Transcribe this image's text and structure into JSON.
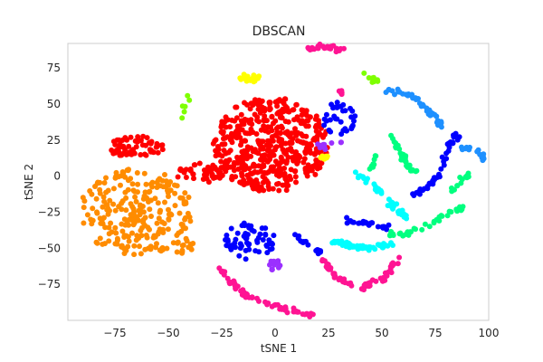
{
  "chart_data": {
    "type": "scatter",
    "title": "DBSCAN",
    "xlabel": "tSNE 1",
    "ylabel": "tSNE 2",
    "xlim": [
      -97,
      100
    ],
    "ylim": [
      -100,
      92
    ],
    "xticks": [
      -75,
      -50,
      -25,
      0,
      25,
      50,
      75,
      100
    ],
    "yticks": [
      -75,
      -50,
      -25,
      0,
      25,
      50,
      75
    ],
    "grid": false,
    "legend": "none",
    "marker_size": 3,
    "series": [
      {
        "color": "#ff0000",
        "kind": "blob",
        "center": [
          -2,
          22
        ],
        "radius": [
          27,
          33
        ],
        "n": 480
      },
      {
        "color": "#ff0000",
        "kind": "blob",
        "center": [
          -65,
          20
        ],
        "radius": [
          13,
          8
        ],
        "n": 60
      },
      {
        "color": "#ff0000",
        "kind": "blob",
        "center": [
          -35,
          2
        ],
        "radius": [
          12,
          7
        ],
        "n": 40
      },
      {
        "color": "#ff8c00",
        "kind": "blob",
        "center": [
          -65,
          -25
        ],
        "radius": [
          27,
          30
        ],
        "n": 250
      },
      {
        "color": "#ff8c00",
        "kind": "blob",
        "center": [
          -43,
          -48
        ],
        "radius": [
          5,
          6
        ],
        "n": 15
      },
      {
        "color": "#0000ff",
        "kind": "blob",
        "center": [
          -12,
          -45
        ],
        "radius": [
          12,
          13
        ],
        "n": 60
      },
      {
        "color": "#0000ff",
        "kind": "blob",
        "center": [
          30,
          40
        ],
        "radius": [
          8,
          12
        ],
        "n": 35
      },
      {
        "color": "#0000ff",
        "kind": "path",
        "pts": [
          [
            62,
            -15
          ],
          [
            72,
            -8
          ],
          [
            78,
            5
          ],
          [
            82,
            20
          ],
          [
            85,
            28
          ]
        ],
        "n": 45
      },
      {
        "color": "#0000ff",
        "kind": "path",
        "pts": [
          [
            32,
            -30
          ],
          [
            42,
            -33
          ],
          [
            52,
            -36
          ]
        ],
        "n": 25
      },
      {
        "color": "#0000ff",
        "kind": "path",
        "pts": [
          [
            8,
            -40
          ],
          [
            15,
            -48
          ],
          [
            22,
            -54
          ]
        ],
        "n": 15
      },
      {
        "color": "#1e90ff",
        "kind": "path",
        "pts": [
          [
            52,
            60
          ],
          [
            65,
            55
          ],
          [
            72,
            45
          ],
          [
            78,
            35
          ]
        ],
        "n": 45
      },
      {
        "color": "#1e90ff",
        "kind": "path",
        "pts": [
          [
            88,
            20
          ],
          [
            93,
            18
          ],
          [
            99,
            12
          ]
        ],
        "n": 20
      },
      {
        "color": "#00ffff",
        "kind": "path",
        "pts": [
          [
            26,
            -45
          ],
          [
            34,
            -48
          ],
          [
            44,
            -50
          ],
          [
            54,
            -47
          ]
        ],
        "n": 60
      },
      {
        "color": "#00ffff",
        "kind": "path",
        "pts": [
          [
            38,
            2
          ],
          [
            45,
            -5
          ],
          [
            55,
            -20
          ],
          [
            62,
            -28
          ]
        ],
        "n": 45
      },
      {
        "color": "#00ff7f",
        "kind": "path",
        "pts": [
          [
            52,
            -40
          ],
          [
            62,
            -40
          ],
          [
            72,
            -33
          ],
          [
            82,
            -25
          ],
          [
            90,
            -20
          ]
        ],
        "n": 40
      },
      {
        "color": "#00ff7f",
        "kind": "path",
        "pts": [
          [
            82,
            -10
          ],
          [
            88,
            -2
          ],
          [
            92,
            3
          ]
        ],
        "n": 15
      },
      {
        "color": "#00ff7f",
        "kind": "path",
        "pts": [
          [
            55,
            28
          ],
          [
            58,
            18
          ],
          [
            62,
            8
          ],
          [
            65,
            3
          ]
        ],
        "n": 30
      },
      {
        "color": "#00ff7f",
        "kind": "path",
        "pts": [
          [
            47,
            15
          ],
          [
            45,
            5
          ]
        ],
        "n": 8
      },
      {
        "color": "#ff1493",
        "kind": "path",
        "pts": [
          [
            -25,
            -65
          ],
          [
            -15,
            -82
          ],
          [
            0,
            -90
          ],
          [
            18,
            -97
          ]
        ],
        "n": 70
      },
      {
        "color": "#ff1493",
        "kind": "path",
        "pts": [
          [
            22,
            -58
          ],
          [
            28,
            -70
          ],
          [
            40,
            -78
          ],
          [
            50,
            -72
          ],
          [
            58,
            -58
          ]
        ],
        "n": 60
      },
      {
        "color": "#ff1493",
        "kind": "path",
        "pts": [
          [
            15,
            88
          ],
          [
            23,
            90
          ],
          [
            32,
            87
          ]
        ],
        "n": 30
      },
      {
        "color": "#ff1493",
        "kind": "blob",
        "center": [
          30,
          58
        ],
        "radius": [
          2,
          2
        ],
        "n": 5
      },
      {
        "color": "#ffff00",
        "kind": "blob",
        "center": [
          -12,
          68
        ],
        "radius": [
          5,
          3
        ],
        "n": 20
      },
      {
        "color": "#ffff00",
        "kind": "blob",
        "center": [
          23,
          13
        ],
        "radius": [
          3,
          1.5
        ],
        "n": 8
      },
      {
        "color": "#9b30ff",
        "kind": "blob",
        "center": [
          0,
          -62
        ],
        "radius": [
          3,
          4
        ],
        "n": 15
      },
      {
        "color": "#9b30ff",
        "kind": "path",
        "pts": [
          [
            20,
            20
          ],
          [
            25,
            22
          ],
          [
            32,
            25
          ]
        ],
        "n": 12
      },
      {
        "color": "#7fff00",
        "kind": "path",
        "pts": [
          [
            -40,
            55
          ],
          [
            -45,
            38
          ]
        ],
        "n": 6
      },
      {
        "color": "#7fff00",
        "kind": "path",
        "pts": [
          [
            42,
            72
          ],
          [
            48,
            65
          ]
        ],
        "n": 8
      }
    ]
  }
}
